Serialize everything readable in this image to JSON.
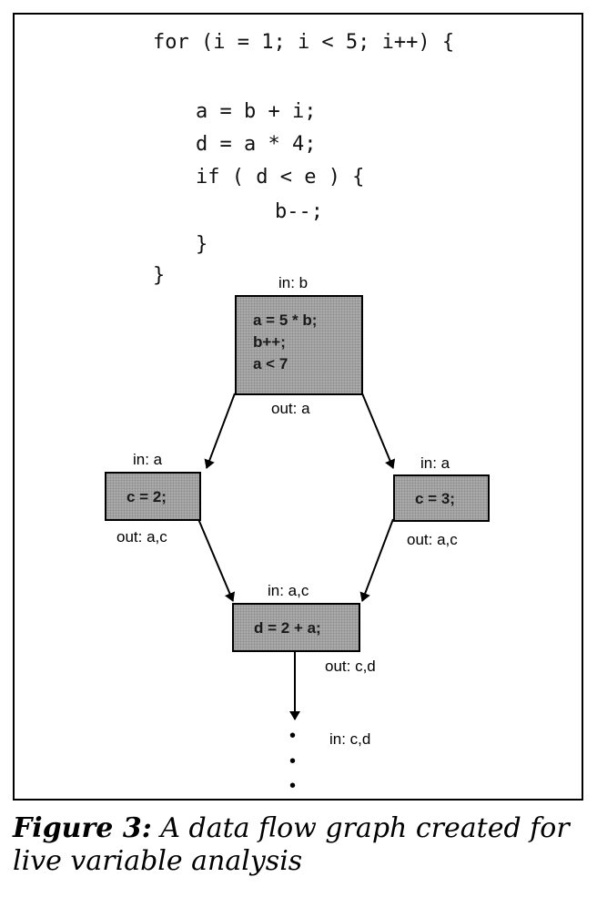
{
  "code_lines": [
    "for (i = 1; i < 5; i++) {",
    "a = b + i;",
    "d = a * 4;",
    "if ( d < e ) {",
    "b--;",
    "}",
    "}"
  ],
  "nodes": {
    "top": {
      "in": "in: b",
      "out": "out: a",
      "lines": [
        "a = 5 * b;",
        "b++;",
        "a < 7"
      ]
    },
    "left": {
      "in": "in: a",
      "out": "out: a,c",
      "text": "c = 2;"
    },
    "right": {
      "in": "in: a",
      "out": "out: a,c",
      "text": "c = 3;"
    },
    "bottom": {
      "in": "in: a,c",
      "out": "out: c,d",
      "text": "d = 2 + a;"
    }
  },
  "continuation": {
    "in": "in: c,d",
    "dots": "•"
  },
  "caption": {
    "label": "Figure 3:",
    "text": "A data flow graph created for live variable analysis"
  }
}
